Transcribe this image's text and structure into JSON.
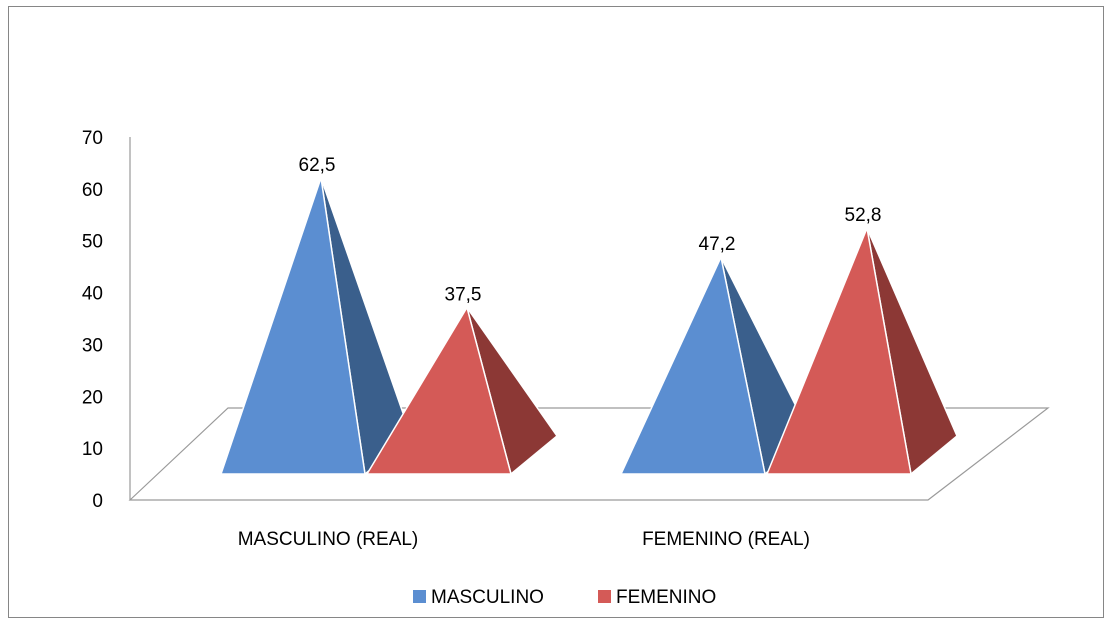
{
  "chart_data": {
    "type": "bar",
    "style": "3d-pyramid",
    "categories": [
      "MASCULINO (REAL)",
      "FEMENINO (REAL)"
    ],
    "series": [
      {
        "name": "MASCULINO",
        "values": [
          62.5,
          47.2
        ],
        "labels": [
          "62,5",
          "47,2"
        ],
        "color": "#5b8ed1",
        "shade": "#3a5f8c"
      },
      {
        "name": "FEMENINO",
        "values": [
          37.5,
          52.8
        ],
        "labels": [
          "37,5",
          "52,8"
        ],
        "color": "#d45a57",
        "shade": "#8c3835"
      }
    ],
    "ylim": [
      0,
      70
    ],
    "yticks": [
      "0",
      "10",
      "20",
      "30",
      "40",
      "50",
      "60",
      "70"
    ],
    "legend_position": "bottom",
    "grid": false
  }
}
